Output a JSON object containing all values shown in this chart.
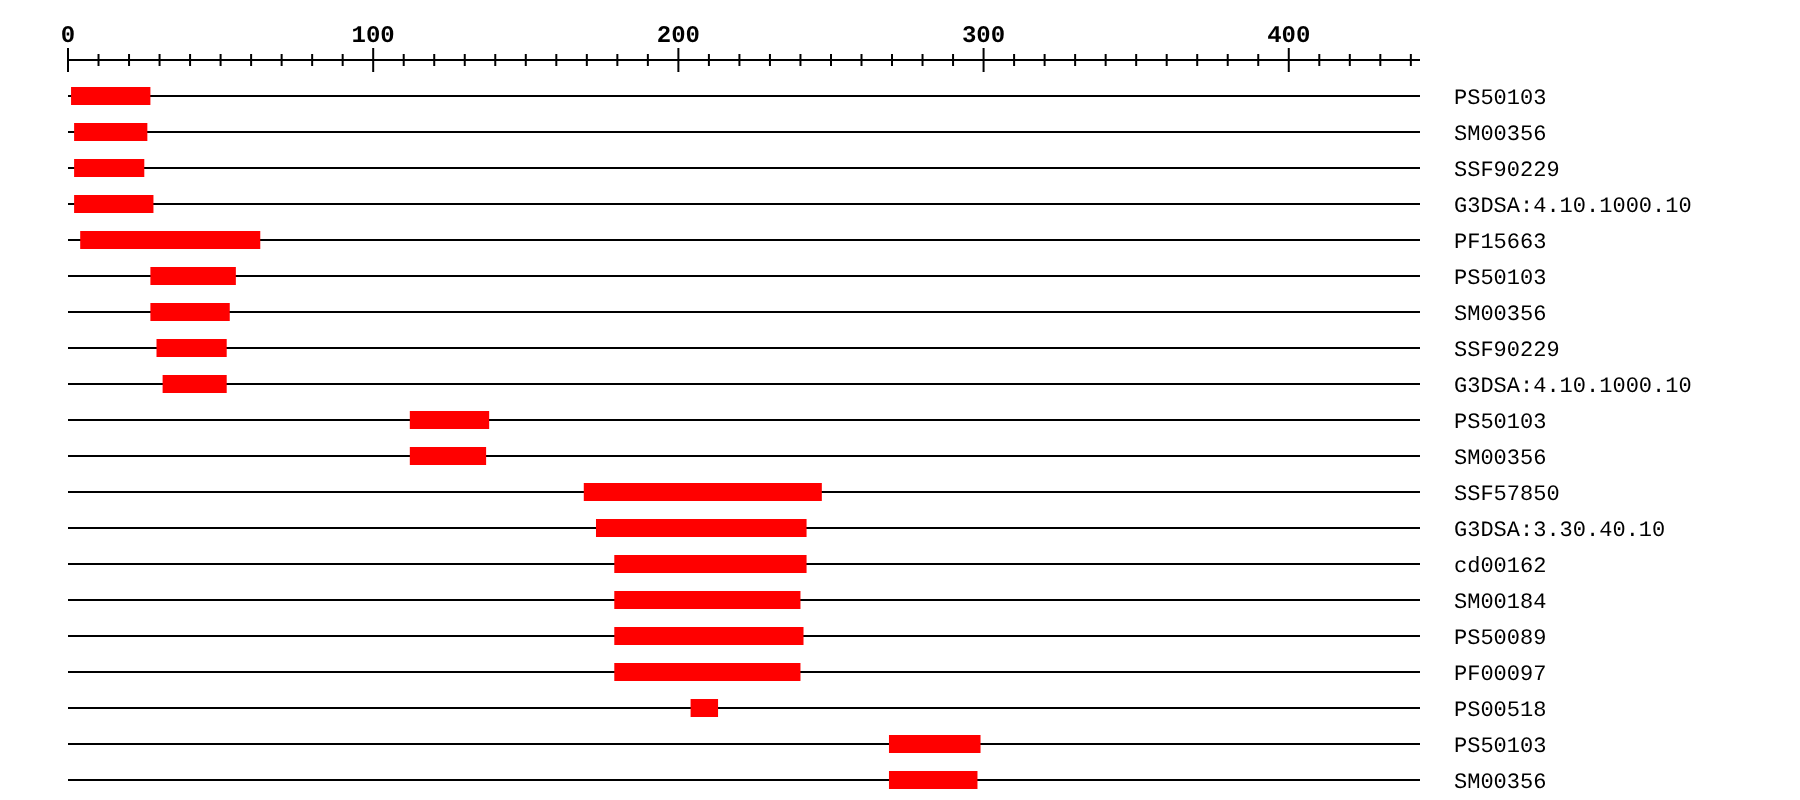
{
  "chart_data": {
    "type": "bar",
    "orientation": "horizontal",
    "grid": "y",
    "color": "#ff0000",
    "categories": [
      "PS50103",
      "SM00356",
      "SSF90229",
      "G3DSA:4.10.1000.10",
      "PF15663",
      "PS50103",
      "SM00356",
      "SSF90229",
      "G3DSA:4.10.1000.10",
      "PS50103",
      "SM00356",
      "SSF57850",
      "G3DSA:3.30.40.10",
      "cd00162",
      "SM00184",
      "PS50089",
      "PF00097",
      "PS00518",
      "PS50103",
      "SM00356"
    ],
    "base": [
      1,
      2,
      2,
      2,
      4,
      27,
      27,
      29,
      31,
      112,
      112,
      169,
      173,
      179,
      179,
      179,
      179,
      204,
      269,
      269
    ],
    "values": [
      26,
      24,
      23,
      26,
      59,
      28,
      26,
      23,
      21,
      26,
      25,
      78,
      69,
      63,
      61,
      62,
      61,
      9,
      30,
      29
    ],
    "xlim": [
      0,
      443
    ],
    "xticks": [
      0,
      {
        "value": 10,
        "label": null
      },
      {
        "value": 20,
        "label": null
      },
      {
        "value": 30,
        "label": null
      },
      {
        "value": 40,
        "label": null
      },
      {
        "value": 50,
        "label": null
      },
      {
        "value": 60,
        "label": null
      },
      {
        "value": 70,
        "label": null
      },
      {
        "value": 80,
        "label": null
      },
      {
        "value": 90,
        "label": null
      },
      100,
      {
        "value": 110,
        "label": null
      },
      {
        "value": 120,
        "label": null
      },
      {
        "value": 130,
        "label": null
      },
      {
        "value": 140,
        "label": null
      },
      {
        "value": 150,
        "label": null
      },
      {
        "value": 160,
        "label": null
      },
      {
        "value": 170,
        "label": null
      },
      {
        "value": 180,
        "label": null
      },
      {
        "value": 190,
        "label": null
      },
      200,
      {
        "value": 210,
        "label": null
      },
      {
        "value": 220,
        "label": null
      },
      {
        "value": 230,
        "label": null
      },
      {
        "value": 240,
        "label": null
      },
      {
        "value": 250,
        "label": null
      },
      {
        "value": 260,
        "label": null
      },
      {
        "value": 270,
        "label": null
      },
      {
        "value": 280,
        "label": null
      },
      {
        "value": 290,
        "label": null
      },
      300,
      {
        "value": 310,
        "label": null
      },
      {
        "value": 320,
        "label": null
      },
      {
        "value": 330,
        "label": null
      },
      {
        "value": 340,
        "label": null
      },
      {
        "value": 350,
        "label": null
      },
      {
        "value": 360,
        "label": null
      },
      {
        "value": 370,
        "label": null
      },
      {
        "value": 380,
        "label": null
      },
      {
        "value": 390,
        "label": null
      },
      400,
      {
        "value": 410,
        "label": null
      },
      {
        "value": 420,
        "label": null
      },
      {
        "value": 430,
        "label": null
      },
      {
        "value": 440,
        "label": null
      }
    ]
  }
}
